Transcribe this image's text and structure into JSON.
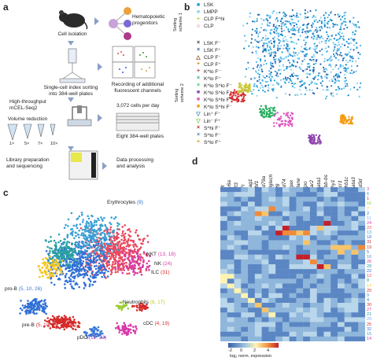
{
  "panel_a": {
    "letter": "a",
    "cell_isolation": "Cell isolation",
    "hematopoietic": "Hematopoietic\nprogenitors",
    "index_sorting": "Single-cell index sorting\ninto 384-well plates",
    "recording": "Recording of additional\nfluorescent channels",
    "high_throughput": "High-throughput\nmCEL-Seq2",
    "volume_reduction": "Volume reduction",
    "volumes": [
      "1×",
      "5×",
      "7×",
      "10×"
    ],
    "cells_per_day": "3,072 cells per day",
    "eight_plates": "Eight 384-well plates",
    "library": "Library preparation\nand sequencing",
    "data_processing": "Data processing\nand analysis"
  },
  "panel_b": {
    "letter": "b",
    "scheme1": "Sorting\nscheme 1",
    "scheme2": "Sorting\nscheme 2",
    "scheme1_items": [
      {
        "sym": "■",
        "label": "LSK",
        "color": "#1f9fd8"
      },
      {
        "sym": "■",
        "label": "LMPP",
        "color": "#8fd3f0"
      },
      {
        "sym": "+",
        "label": "CLP F^hi",
        "color": "#c9c83a"
      },
      {
        "sym": "○",
        "label": "CLP",
        "color": "#d62b2b"
      }
    ],
    "scheme2_items": [
      {
        "sym": "×",
        "label": "LSK F⁻",
        "color": "#333333"
      },
      {
        "sym": "×",
        "label": "LSK F⁺",
        "color": "#2a5caa"
      },
      {
        "sym": "△",
        "label": "CLP F⁻",
        "color": "#8b4513"
      },
      {
        "sym": "+",
        "label": "CLP F⁺",
        "color": "#e08a1a"
      },
      {
        "sym": "+",
        "label": "K^lo F⁻",
        "color": "#c0392b"
      },
      {
        "sym": "×",
        "label": "K^lo F⁺",
        "color": "#27ae60"
      },
      {
        "sym": "×",
        "label": "K^lo S^lo F⁻",
        "color": "#2ecc71"
      },
      {
        "sym": "■",
        "label": "K^lo S^lo F⁺",
        "color": "#8e44ad"
      },
      {
        "sym": "■",
        "label": "K^lo S^hi F⁺",
        "color": "#e056c1"
      },
      {
        "sym": "■",
        "label": "K^lo S^hi F⁻",
        "color": "#f39c12"
      },
      {
        "sym": "▽",
        "label": "Lin⁺ F⁻",
        "color": "#2c7fb8"
      },
      {
        "sym": "▽",
        "label": "Lin⁻ F⁺",
        "color": "#7fbf3f"
      },
      {
        "sym": "×",
        "label": "S^hi F⁻",
        "color": "#b22222"
      },
      {
        "sym": "×",
        "label": "S^lo F⁻",
        "color": "#4682b4"
      },
      {
        "sym": "+",
        "label": "S^lo F⁺",
        "color": "#d4a017"
      }
    ]
  },
  "panel_c": {
    "letter": "c",
    "labels": [
      {
        "name": "Erythrocytes",
        "nums": "(9)"
      },
      {
        "name": "NKT",
        "nums": "(13, 18)"
      },
      {
        "name": "NK",
        "nums": "(24)"
      },
      {
        "name": "ILC",
        "nums": "(31)"
      },
      {
        "name": "Neutrophils",
        "nums": "(8, 17)"
      },
      {
        "name": "pro-B",
        "nums": "(5, 10, 26)"
      },
      {
        "name": "pre-B",
        "nums": "(5, 14, 15, 25, 32)"
      },
      {
        "name": "cDC",
        "nums": "(4, 19)"
      },
      {
        "name": "pDC",
        "nums": "(12, 22)"
      }
    ]
  },
  "panel_d": {
    "letter": "d",
    "genes": [
      "Kit",
      "Ly6a",
      "Flt3",
      "Il7r",
      "Rag1",
      "Ebf1",
      "Cd79a",
      "Siglech",
      "Irf8",
      "Cd74",
      "Itgax",
      "Elane",
      "Mpo",
      "Car2",
      "Gata1",
      "Hbb-bs",
      "Thy1",
      "Ncr1",
      "Klrb1c",
      "Gata3",
      "Cd3d"
    ],
    "clusters": [
      "3",
      "6",
      "1",
      "16",
      "7",
      "2",
      "11",
      "24",
      "23",
      "13",
      "18",
      "31",
      "19",
      "5",
      "10",
      "26",
      "28",
      "22",
      "12",
      "8",
      "17",
      "20",
      "9",
      "4",
      "30",
      "27",
      "21",
      "29",
      "25",
      "32",
      "15",
      "14"
    ],
    "cluster_colors": [
      "#d63aa6",
      "#4b8bd6",
      "#d62b2b",
      "#9acd32",
      "#f5c518",
      "#2f6fd6",
      "#7aa8ff",
      "#d63aa6",
      "#e84a5f",
      "#3aa0d6",
      "#3a7ad6",
      "#c0392b",
      "#d62b2b",
      "#3a7ad6",
      "#4b8bd6",
      "#d63aa6",
      "#2aa0a0",
      "#2f6fd6",
      "#e84a5f",
      "#2aa0a0",
      "#f5c518",
      "#d62b2b",
      "#4b8bd6",
      "#3a7ad6",
      "#c0392b",
      "#d63aa6",
      "#2aa0a0",
      "#7aa8ff",
      "#d62b2b",
      "#3a7ad6",
      "#4b8bd6",
      "#d63aa6"
    ],
    "colorbar_ticks": [
      "-2",
      "0",
      "2",
      "4"
    ],
    "colorbar_label": "log₂ norm. expression"
  }
}
